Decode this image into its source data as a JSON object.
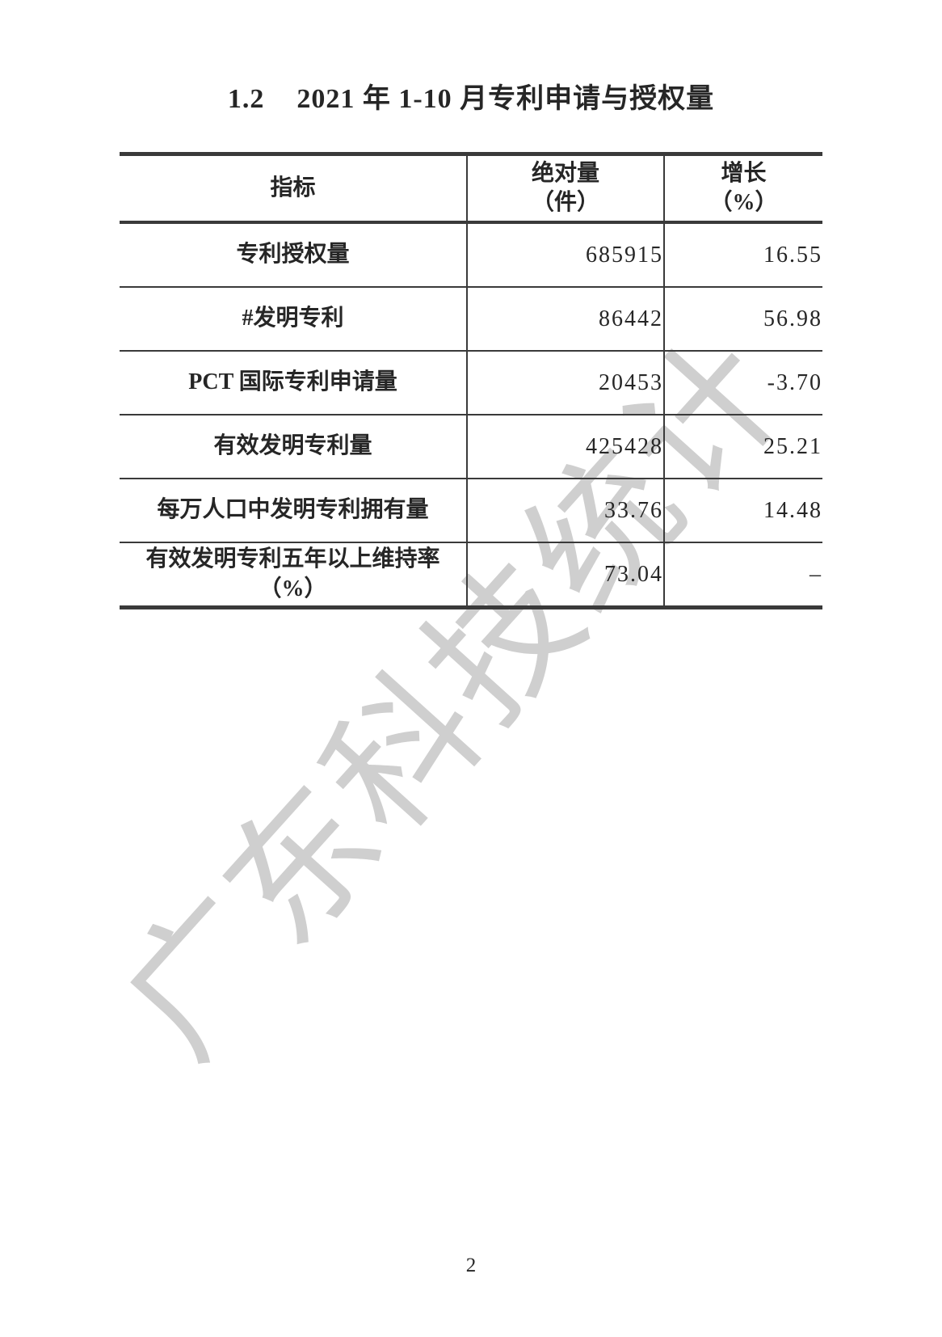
{
  "title": {
    "section": "1.2",
    "text": "2021 年 1-10 月专利申请与授权量"
  },
  "watermark": {
    "text": "广东科技统计",
    "color": "#cfcfcf"
  },
  "table": {
    "columns": [
      {
        "label": "指标",
        "unit": ""
      },
      {
        "label": "绝对量",
        "unit": "（件）"
      },
      {
        "label": "增长",
        "unit": "（%）"
      }
    ],
    "rows": [
      {
        "indicator": "专利授权量",
        "absolute": "685915",
        "growth": "16.55"
      },
      {
        "indicator": "#发明专利",
        "absolute": "86442",
        "growth": "56.98"
      },
      {
        "indicator": "PCT 国际专利申请量",
        "absolute": "20453",
        "growth": "-3.70"
      },
      {
        "indicator": "有效发明专利量",
        "absolute": "425428",
        "growth": "25.21"
      },
      {
        "indicator": "每万人口中发明专利拥有量",
        "absolute": "33.76",
        "growth": "14.48"
      },
      {
        "indicator": "有效发明专利五年以上维持率",
        "indicator_line2": "（%）",
        "absolute": "73.04",
        "growth": "–"
      }
    ]
  },
  "page": {
    "number": "2"
  },
  "colors": {
    "background": "#ffffff",
    "text": "#262626",
    "border": "#3a3a3a",
    "watermark": "#cfcfcf"
  }
}
